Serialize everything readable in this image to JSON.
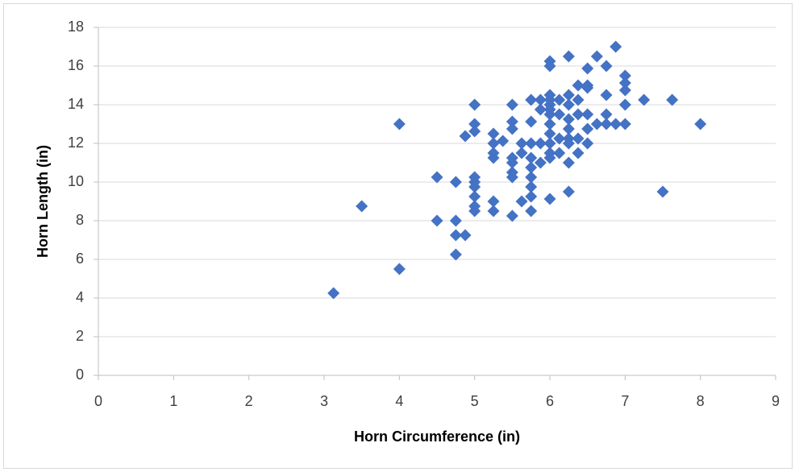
{
  "chart_data": {
    "type": "scatter",
    "x_label": "Horn Circumference (in)",
    "y_label": "Horn Length (in)",
    "color": "#4472c4",
    "grid": true,
    "xlim": [
      0,
      9
    ],
    "xticks": [
      0,
      1,
      2,
      3,
      4,
      5,
      6,
      7,
      8,
      9
    ],
    "ylim": [
      0,
      18
    ],
    "yticks": [
      0,
      2,
      4,
      6,
      8,
      10,
      12,
      14,
      16,
      18
    ],
    "x": [
      3.125,
      3.5,
      4,
      4,
      4.5,
      4.5,
      4.75,
      4.75,
      4.75,
      4.75,
      4.875,
      4.875,
      5,
      5,
      5,
      5,
      5,
      5,
      5,
      5,
      5,
      5.25,
      5.25,
      5.25,
      5.25,
      5.25,
      5.25,
      5.375,
      5.5,
      5.5,
      5.5,
      5.5,
      5.5,
      5.5,
      5.5,
      5.5,
      5.625,
      5.625,
      5.625,
      5.75,
      5.75,
      5.75,
      5.75,
      5.75,
      5.75,
      5.75,
      5.75,
      5.75,
      5.875,
      5.875,
      5.875,
      5.875,
      6,
      6,
      6,
      6,
      6,
      6,
      6,
      6,
      6,
      6,
      6,
      6,
      6,
      6.125,
      6.125,
      6.125,
      6.125,
      6.25,
      6.25,
      6.25,
      6.25,
      6.25,
      6.25,
      6.25,
      6.25,
      6.25,
      6.375,
      6.375,
      6.375,
      6.375,
      6.375,
      6.5,
      6.5,
      6.5,
      6.5,
      6.5,
      6.5,
      6.625,
      6.625,
      6.75,
      6.75,
      6.75,
      6.75,
      6.875,
      6.875,
      7,
      7,
      7,
      7,
      7,
      7.25,
      7.5,
      7.625,
      8
    ],
    "values": [
      4.25,
      8.75,
      13,
      5.5,
      10.25,
      8,
      10,
      8,
      7.25,
      6.25,
      7.25,
      12.375,
      14,
      13,
      12.625,
      10.25,
      10,
      9.75,
      9.25,
      8.75,
      8.5,
      12.5,
      12,
      11.5,
      11.25,
      9,
      8.5,
      12.125,
      14,
      13.125,
      12.75,
      11.25,
      11,
      10.5,
      10.25,
      8.25,
      12,
      11.5,
      9,
      14.25,
      13.125,
      12,
      11.25,
      10.75,
      10.25,
      9.75,
      9.25,
      8.5,
      14.25,
      13.75,
      12,
      11,
      16.25,
      16,
      14.5,
      14.25,
      14,
      13.75,
      13.5,
      13,
      12.5,
      12,
      11.5,
      11.25,
      9.125,
      14.25,
      13.5,
      12.25,
      11.5,
      16.5,
      14.5,
      14,
      13.25,
      12.75,
      12.25,
      12,
      11,
      9.5,
      15,
      14.25,
      13.5,
      12.25,
      11.5,
      15.875,
      15,
      14.875,
      13.5,
      12.75,
      12,
      16.5,
      13,
      16,
      14.5,
      13.5,
      13,
      17,
      13,
      15.5,
      15.125,
      14.75,
      14,
      13,
      14.25,
      9.5,
      14.25,
      13
    ]
  }
}
